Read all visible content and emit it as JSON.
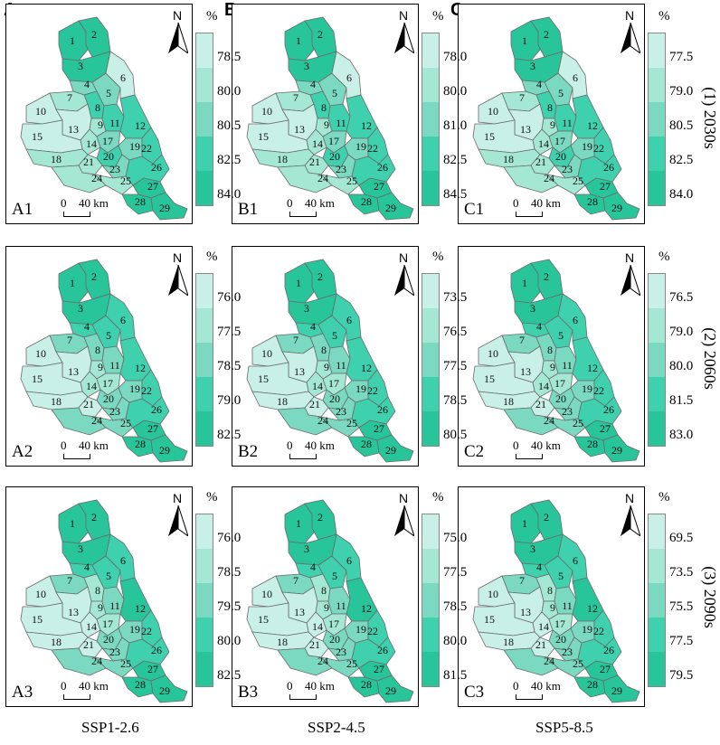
{
  "columns": [
    {
      "letter": "A",
      "scenario": "SSP1-2.6"
    },
    {
      "letter": "B",
      "scenario": "SSP2-4.5"
    },
    {
      "letter": "C",
      "scenario": "SSP5-8.5"
    }
  ],
  "rows": [
    "(1) 2030s",
    "(2) 2060s",
    "(3) 2090s"
  ],
  "colors": {
    "c1": "#c8f0e6",
    "c2": "#a4e8d4",
    "c3": "#7ad9c0",
    "c4": "#3fd0ae",
    "c5": "#28c49a",
    "border": "#6b6b6b"
  },
  "north_label": "N",
  "unit": "%",
  "scale": {
    "zero": "0",
    "distance": "40 km"
  },
  "subbasin_numbers": [
    "1",
    "2",
    "3",
    "4",
    "5",
    "6",
    "7",
    "8",
    "9",
    "10",
    "11",
    "12",
    "13",
    "14",
    "15",
    "17",
    "18",
    "19",
    "20",
    "21",
    "22",
    "23",
    "24",
    "25",
    "26",
    "27",
    "28",
    "29"
  ],
  "panels": [
    {
      "id": "A1",
      "legend": [
        "78.5",
        "80.0",
        "80.5",
        "82.5",
        "84.0"
      ]
    },
    {
      "id": "B1",
      "legend": [
        "78.0",
        "80.0",
        "81.0",
        "82.5",
        "84.5"
      ]
    },
    {
      "id": "C1",
      "legend": [
        "77.5",
        "79.0",
        "80.5",
        "82.5",
        "84.0"
      ]
    },
    {
      "id": "A2",
      "legend": [
        "76.0",
        "77.5",
        "78.5",
        "79.0",
        "82.5"
      ]
    },
    {
      "id": "B2",
      "legend": [
        "73.5",
        "76.5",
        "77.5",
        "78.5",
        "80.5"
      ]
    },
    {
      "id": "C2",
      "legend": [
        "76.5",
        "79.0",
        "80.0",
        "81.5",
        "83.0"
      ]
    },
    {
      "id": "A3",
      "legend": [
        "76.0",
        "78.5",
        "79.5",
        "80.0",
        "82.5"
      ]
    },
    {
      "id": "B3",
      "legend": [
        "75.0",
        "77.5",
        "78.5",
        "80.0",
        "81.5"
      ]
    },
    {
      "id": "C3",
      "legend": [
        "69.5",
        "73.5",
        "75.5",
        "77.5",
        "79.5"
      ]
    }
  ]
}
